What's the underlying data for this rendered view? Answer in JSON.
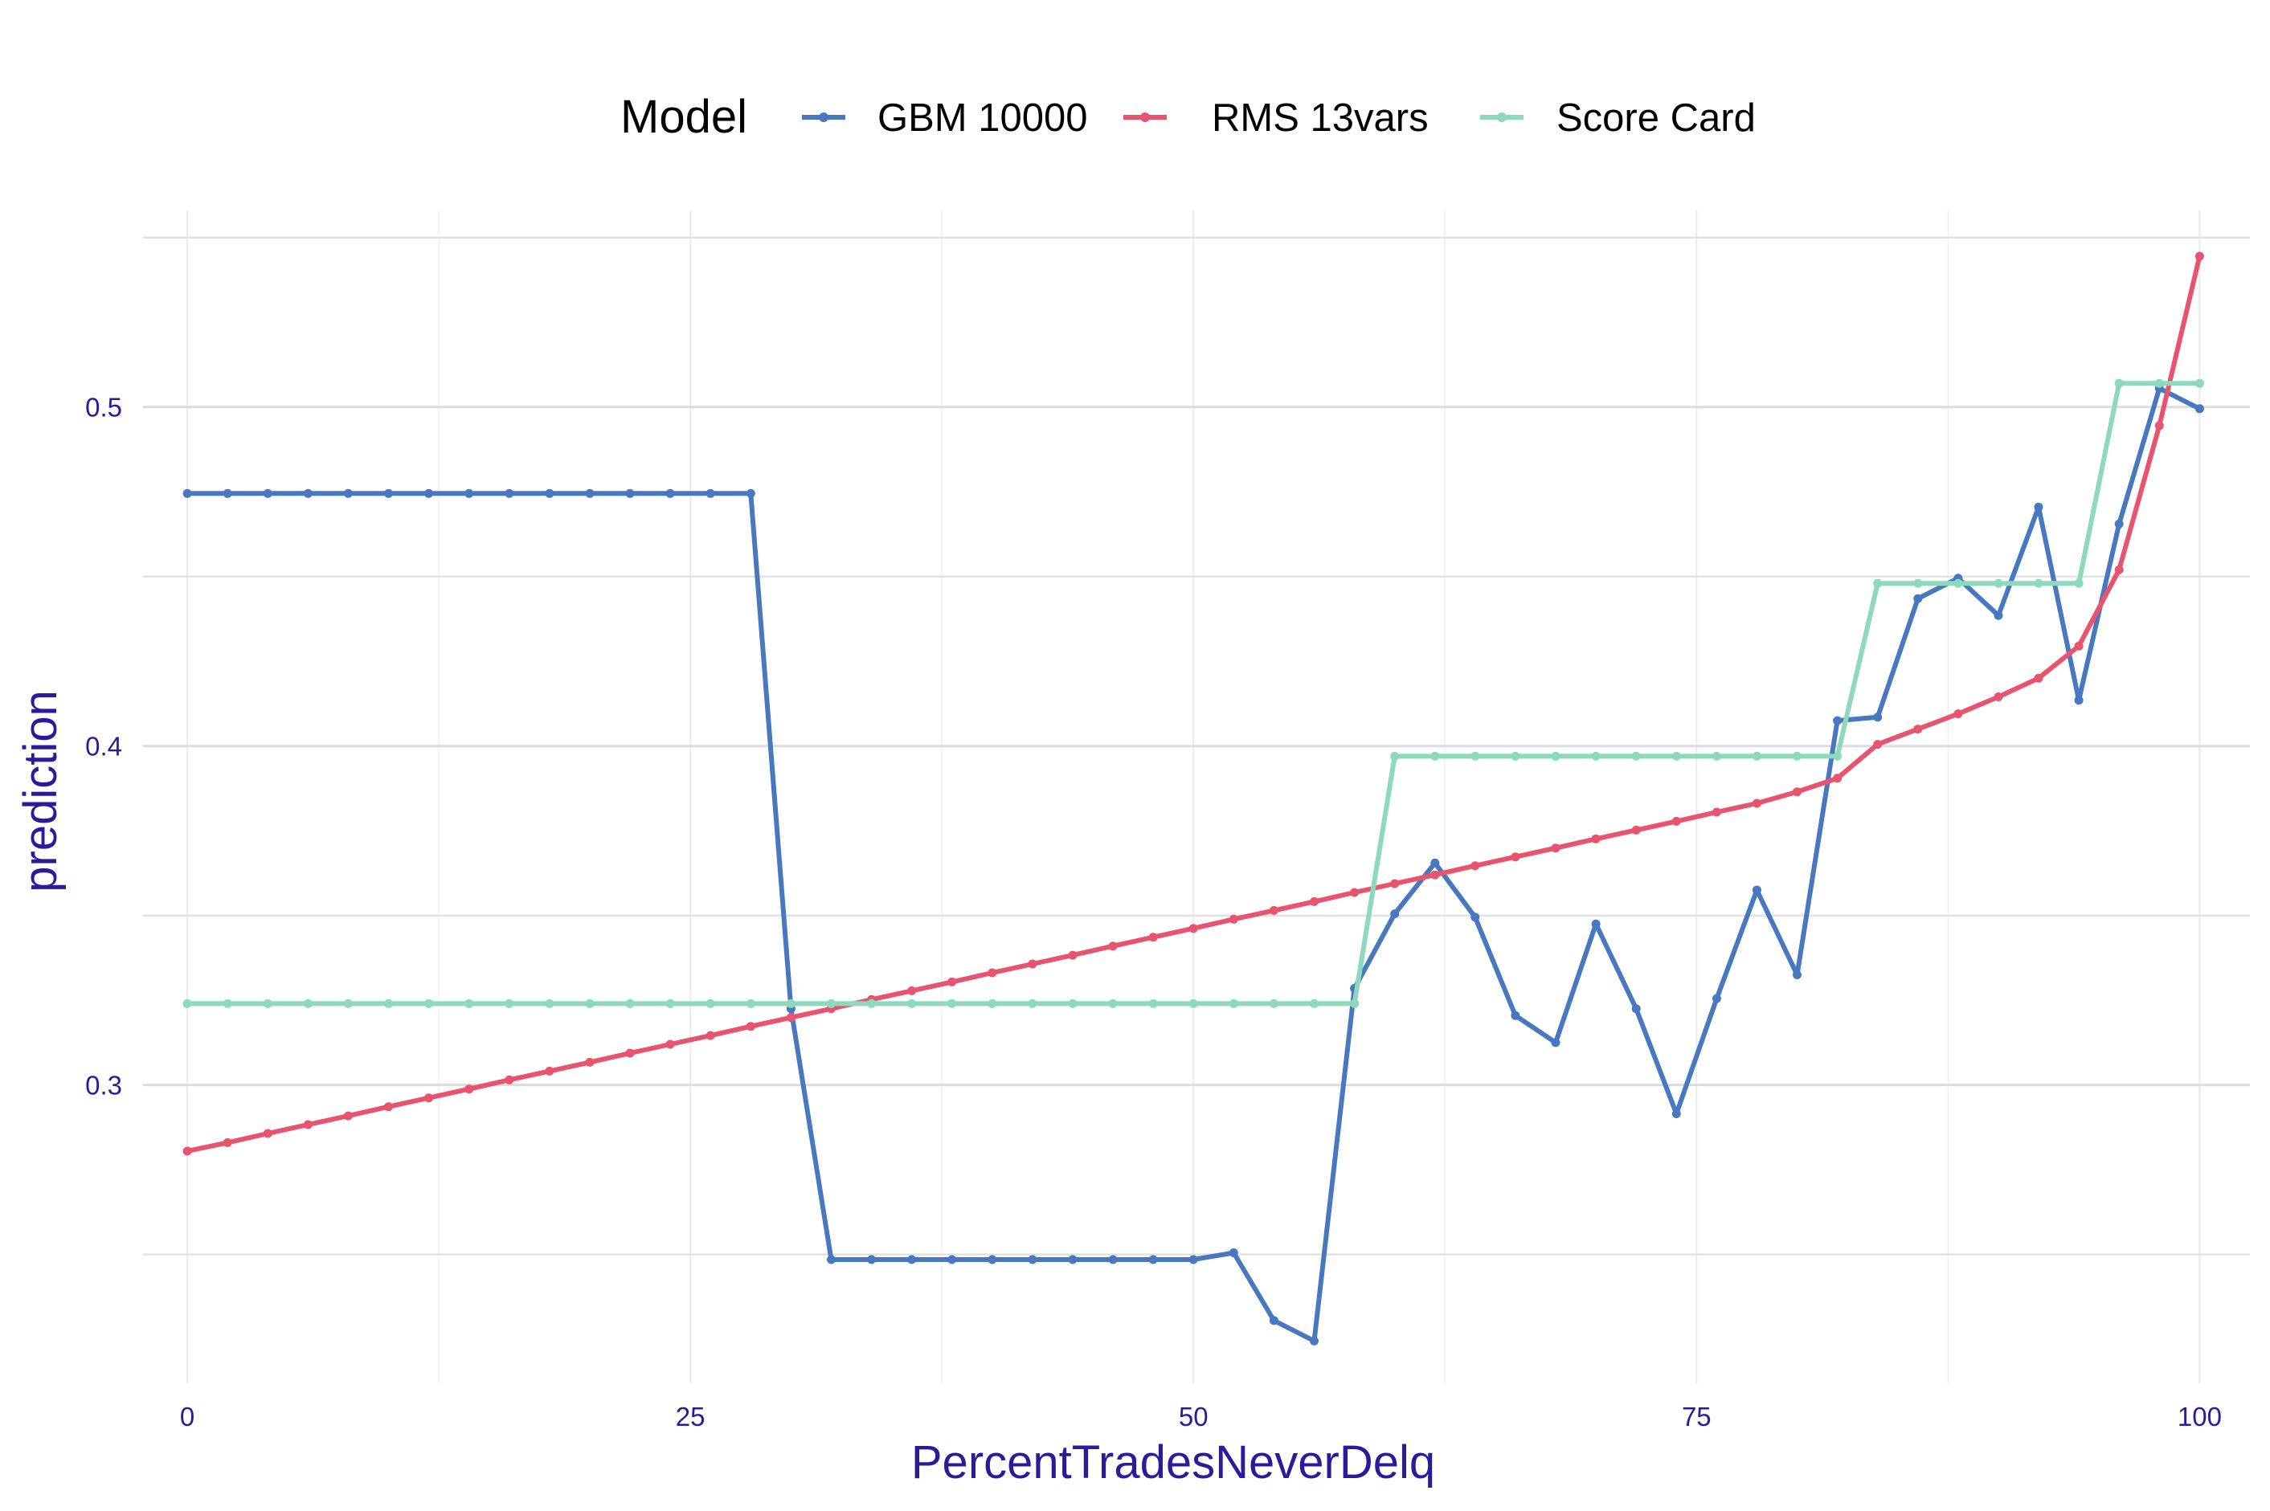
{
  "chart_data": {
    "type": "line",
    "xlabel": "PercentTradesNeverDelq",
    "ylabel": "prediction",
    "xlim": [
      -2.2,
      102.5
    ],
    "ylim": [
      0.212,
      0.558
    ],
    "x_ticks": [
      0,
      25,
      50,
      75,
      100
    ],
    "y_ticks": [
      0.3,
      0.4,
      0.5
    ],
    "y_minor": [
      0.25,
      0.35,
      0.45,
      0.55
    ],
    "x_minor": [
      12.5,
      37.5,
      62.5,
      87.5
    ],
    "grid": true,
    "legend": {
      "title": "Model",
      "position": "top"
    },
    "series": [
      {
        "name": "GBM 10000",
        "color": "#4878c0",
        "x": [
          0,
          2,
          4,
          6,
          8,
          10,
          12,
          14,
          16,
          18,
          20,
          22,
          24,
          26,
          28,
          30,
          32,
          34,
          36,
          38,
          40,
          42,
          44,
          46,
          48,
          50,
          52,
          54,
          56,
          58,
          60,
          62,
          64,
          66,
          68,
          70,
          72,
          74,
          76,
          78,
          80,
          82,
          84,
          86,
          88,
          90,
          92,
          94,
          96,
          98,
          100
        ],
        "y": [
          0.4745,
          0.4745,
          0.4745,
          0.4745,
          0.4745,
          0.4745,
          0.4745,
          0.4745,
          0.4745,
          0.4745,
          0.4745,
          0.4745,
          0.4745,
          0.4745,
          0.4745,
          0.3225,
          0.2485,
          0.2485,
          0.2485,
          0.2485,
          0.2485,
          0.2485,
          0.2485,
          0.2485,
          0.2485,
          0.2485,
          0.2505,
          0.2305,
          0.2245,
          0.3285,
          0.3505,
          0.3655,
          0.3495,
          0.3205,
          0.3125,
          0.3475,
          0.3225,
          0.2915,
          0.3255,
          0.3575,
          0.3325,
          0.4075,
          0.4085,
          0.4435,
          0.4495,
          0.4385,
          0.4705,
          0.4135,
          0.4655,
          0.5055,
          0.4995
        ]
      },
      {
        "name": "RMS 13vars",
        "color": "#e8546e",
        "x": [
          0,
          2,
          4,
          6,
          8,
          10,
          12,
          14,
          16,
          18,
          20,
          22,
          24,
          26,
          28,
          30,
          32,
          34,
          36,
          38,
          40,
          42,
          44,
          46,
          48,
          50,
          52,
          54,
          56,
          58,
          60,
          62,
          64,
          66,
          68,
          70,
          72,
          74,
          76,
          78,
          80,
          82,
          84,
          86,
          88,
          90,
          92,
          94,
          96,
          98,
          100
        ],
        "y": [
          0.2805,
          0.283,
          0.2857,
          0.2883,
          0.2909,
          0.2936,
          0.2962,
          0.2988,
          0.3015,
          0.3041,
          0.3067,
          0.3094,
          0.312,
          0.3146,
          0.3173,
          0.3199,
          0.3225,
          0.3252,
          0.3278,
          0.3304,
          0.3331,
          0.3357,
          0.3383,
          0.341,
          0.3436,
          0.3462,
          0.3489,
          0.3515,
          0.3541,
          0.3568,
          0.3594,
          0.362,
          0.3647,
          0.3673,
          0.3699,
          0.3726,
          0.3752,
          0.3778,
          0.3805,
          0.3831,
          0.3865,
          0.3905,
          0.4005,
          0.405,
          0.4095,
          0.4145,
          0.42,
          0.4295,
          0.452,
          0.4945,
          0.5445
        ]
      },
      {
        "name": "Score Card",
        "color": "#8cd9bc",
        "x": [
          0,
          2,
          4,
          6,
          8,
          10,
          12,
          14,
          16,
          18,
          20,
          22,
          24,
          26,
          28,
          30,
          32,
          34,
          36,
          38,
          40,
          42,
          44,
          46,
          48,
          50,
          52,
          54,
          56,
          58,
          60,
          62,
          64,
          66,
          68,
          70,
          72,
          74,
          76,
          78,
          80,
          82,
          84,
          86,
          88,
          90,
          92,
          94,
          96,
          98,
          100
        ],
        "y": [
          0.324,
          0.324,
          0.324,
          0.324,
          0.324,
          0.324,
          0.324,
          0.324,
          0.324,
          0.324,
          0.324,
          0.324,
          0.324,
          0.324,
          0.324,
          0.324,
          0.324,
          0.324,
          0.324,
          0.324,
          0.324,
          0.324,
          0.324,
          0.324,
          0.324,
          0.324,
          0.324,
          0.324,
          0.324,
          0.324,
          0.397,
          0.397,
          0.397,
          0.397,
          0.397,
          0.397,
          0.397,
          0.397,
          0.397,
          0.397,
          0.397,
          0.397,
          0.448,
          0.448,
          0.448,
          0.448,
          0.448,
          0.448,
          0.507,
          0.507,
          0.507
        ]
      }
    ]
  }
}
